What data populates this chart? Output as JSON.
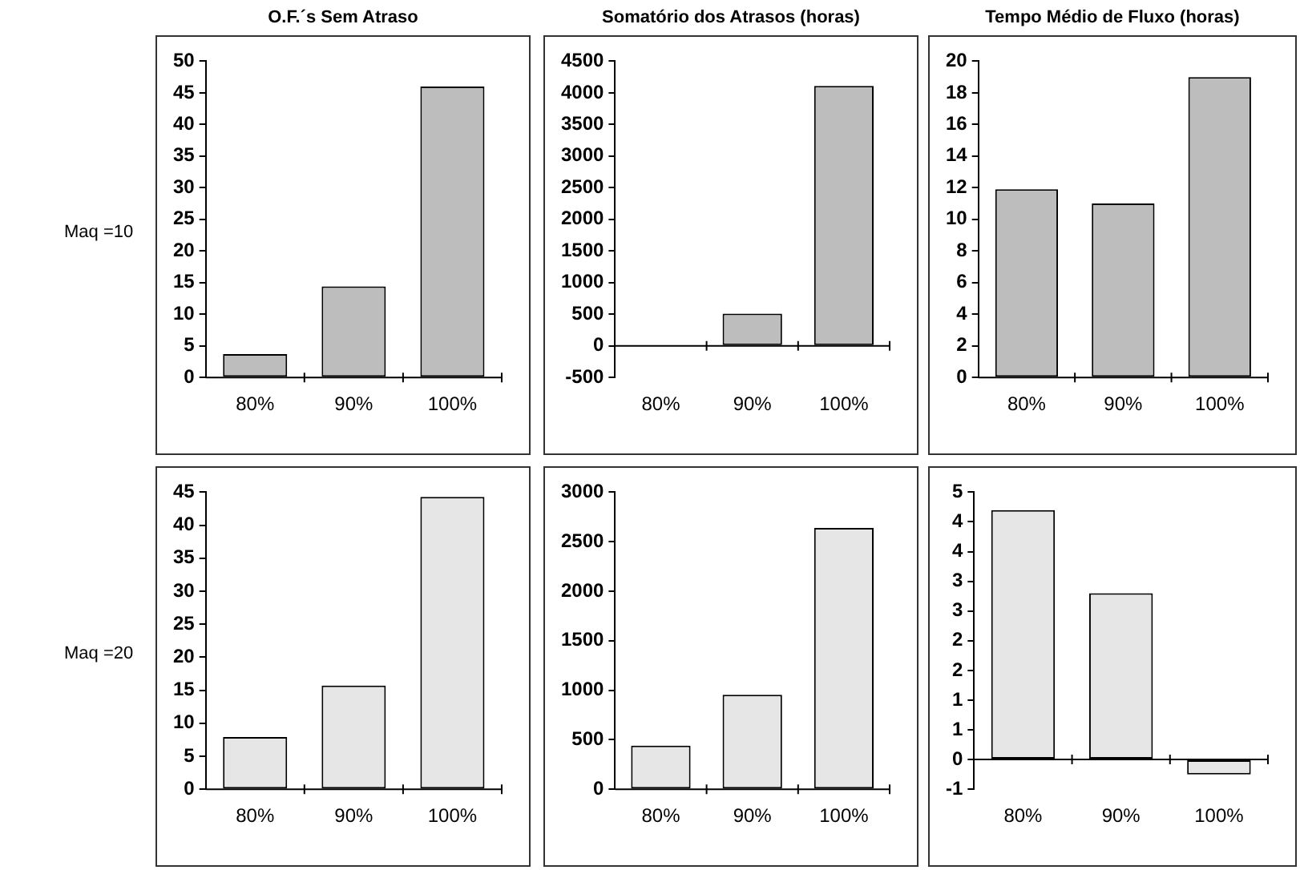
{
  "chart_data": [
    {
      "type": "bar",
      "title": "O.F.´s  Sem Atraso",
      "annotations": [
        "Maq =10"
      ],
      "categories": [
        "80%",
        "90%",
        "100%"
      ],
      "values": [
        3.7,
        14.4,
        46
      ],
      "color": "#bdbdbd",
      "ylim": [
        0,
        50
      ],
      "yticks": [
        0,
        5,
        10,
        15,
        20,
        25,
        30,
        35,
        40,
        45,
        50
      ]
    },
    {
      "type": "bar",
      "title": "Somatório dos Atrasos (horas)",
      "categories": [
        "80%",
        "90%",
        "100%"
      ],
      "values": [
        0,
        510,
        4110
      ],
      "color": "#bdbdbd",
      "ylim": [
        -500,
        4500
      ],
      "yticks": [
        -500,
        0,
        500,
        1000,
        1500,
        2000,
        2500,
        3000,
        3500,
        4000,
        4500
      ]
    },
    {
      "type": "bar",
      "title": "Tempo Médio de Fluxo (horas)",
      "categories": [
        "80%",
        "90%",
        "100%"
      ],
      "values": [
        11.9,
        11,
        19
      ],
      "color": "#bdbdbd",
      "ylim": [
        0,
        20
      ],
      "yticks": [
        0,
        2,
        4,
        6,
        8,
        10,
        12,
        14,
        16,
        18,
        20
      ]
    },
    {
      "type": "bar",
      "annotations": [
        "Maq =20"
      ],
      "categories": [
        "80%",
        "90%",
        "100%"
      ],
      "values": [
        7.9,
        15.7,
        44.3
      ],
      "color": "#e6e6e6",
      "ylim": [
        0,
        45
      ],
      "yticks": [
        0,
        5,
        10,
        15,
        20,
        25,
        30,
        35,
        40,
        45
      ]
    },
    {
      "type": "bar",
      "categories": [
        "80%",
        "90%",
        "100%"
      ],
      "values": [
        440,
        955,
        2640
      ],
      "color": "#e6e6e6",
      "ylim": [
        0,
        3000
      ],
      "yticks": [
        0,
        500,
        1000,
        1500,
        2000,
        2500,
        3000
      ]
    },
    {
      "type": "bar",
      "categories": [
        "80%",
        "90%",
        "100%"
      ],
      "values": [
        4.2,
        2.8,
        -0.25
      ],
      "color": "#e6e6e6",
      "ylim": [
        -0.5,
        4.5
      ],
      "yticks": [
        {
          "value": -0.5,
          "label": "-1"
        },
        {
          "value": 0,
          "label": "0"
        },
        {
          "value": 0.5,
          "label": "1"
        },
        {
          "value": 1,
          "label": "1"
        },
        {
          "value": 1.5,
          "label": "2"
        },
        {
          "value": 2,
          "label": "2"
        },
        {
          "value": 2.5,
          "label": "3"
        },
        {
          "value": 3,
          "label": "3"
        },
        {
          "value": 3.5,
          "label": "4"
        },
        {
          "value": 4,
          "label": "4"
        },
        {
          "value": 4.5,
          "label": "5"
        }
      ]
    }
  ]
}
